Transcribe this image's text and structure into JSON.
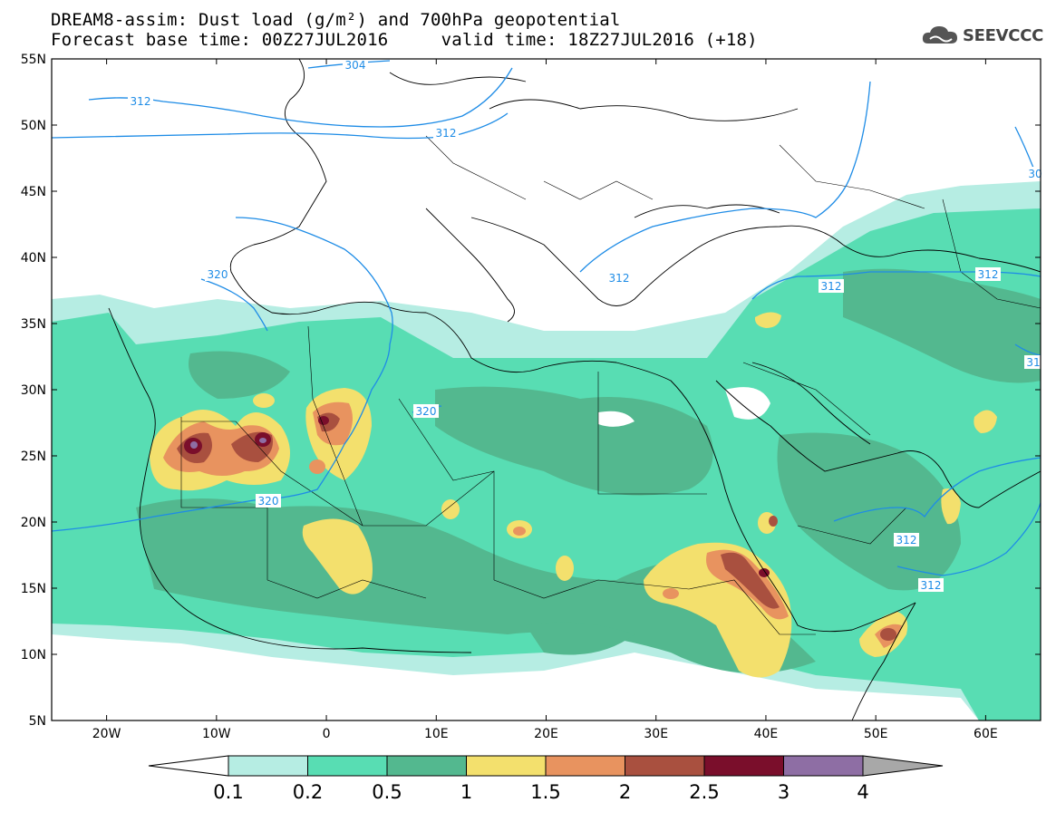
{
  "title": {
    "line1": "DREAM8-assim: Dust load (g/m²) and 700hPa geopotential",
    "line2": "Forecast base time: 00Z27JUL2016     valid time: 18Z27JUL2016 (+18)"
  },
  "logo": {
    "text": "SEEVCCC",
    "icon": "cloud-icon"
  },
  "map": {
    "lon_range": [
      -25,
      65
    ],
    "lat_range": [
      5,
      55
    ],
    "y_ticks": [
      "55N",
      "50N",
      "45N",
      "40N",
      "35N",
      "30N",
      "25N",
      "20N",
      "15N",
      "10N",
      "5N"
    ],
    "x_ticks": [
      "20W",
      "10W",
      "0",
      "10E",
      "20E",
      "30E",
      "40E",
      "50E",
      "60E"
    ],
    "contour_labels": [
      {
        "text": "304"
      },
      {
        "text": "312"
      },
      {
        "text": "312"
      },
      {
        "text": "320"
      },
      {
        "text": "320"
      },
      {
        "text": "320"
      },
      {
        "text": "312"
      },
      {
        "text": "312"
      },
      {
        "text": "312"
      },
      {
        "text": "312"
      },
      {
        "text": "312"
      },
      {
        "text": "30"
      },
      {
        "text": "31"
      }
    ]
  },
  "colorbar": {
    "ticks": [
      "0.1",
      "0.2",
      "0.5",
      "1",
      "1.5",
      "2",
      "2.5",
      "3",
      "4"
    ],
    "colors": [
      "#ffffff",
      "#b6ede3",
      "#58ddb3",
      "#53b88f",
      "#f3e06d",
      "#e8935f",
      "#a9503f",
      "#7a0e2b",
      "#8e6ea4",
      "#a8a8a8"
    ]
  }
}
